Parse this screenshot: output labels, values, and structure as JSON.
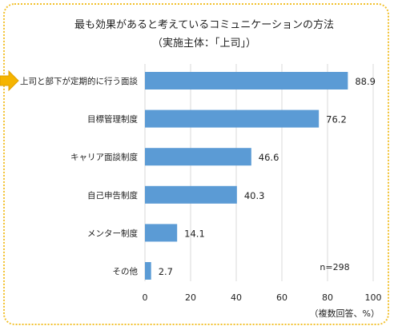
{
  "chart_data": {
    "type": "bar",
    "orientation": "horizontal",
    "title": "最も効果があると考えているコミュニケーションの方法",
    "subtitle": "（実施主体：「上司」）",
    "categories": [
      "上司と部下が定期的に行う面談",
      "目標管理制度",
      "キャリア面談制度",
      "自己申告制度",
      "メンター制度",
      "その他"
    ],
    "values": [
      88.9,
      76.2,
      46.6,
      40.3,
      14.1,
      2.7
    ],
    "value_labels": [
      "88.9",
      "76.2",
      "46.6",
      "40.3",
      "14.1",
      "2.7"
    ],
    "xlim": [
      0,
      100
    ],
    "x_ticks": [
      "0",
      "20",
      "40",
      "60",
      "80",
      "100"
    ],
    "x_tick_values": [
      0,
      20,
      40,
      60,
      80,
      100
    ],
    "note": "n=298",
    "unit_note": "（複数回答、%）",
    "grid": true,
    "bar_color": "#5b9bd5",
    "grid_color": "#d9d9d9",
    "arrow_color": "#f5b400",
    "highlight_index": 0
  }
}
